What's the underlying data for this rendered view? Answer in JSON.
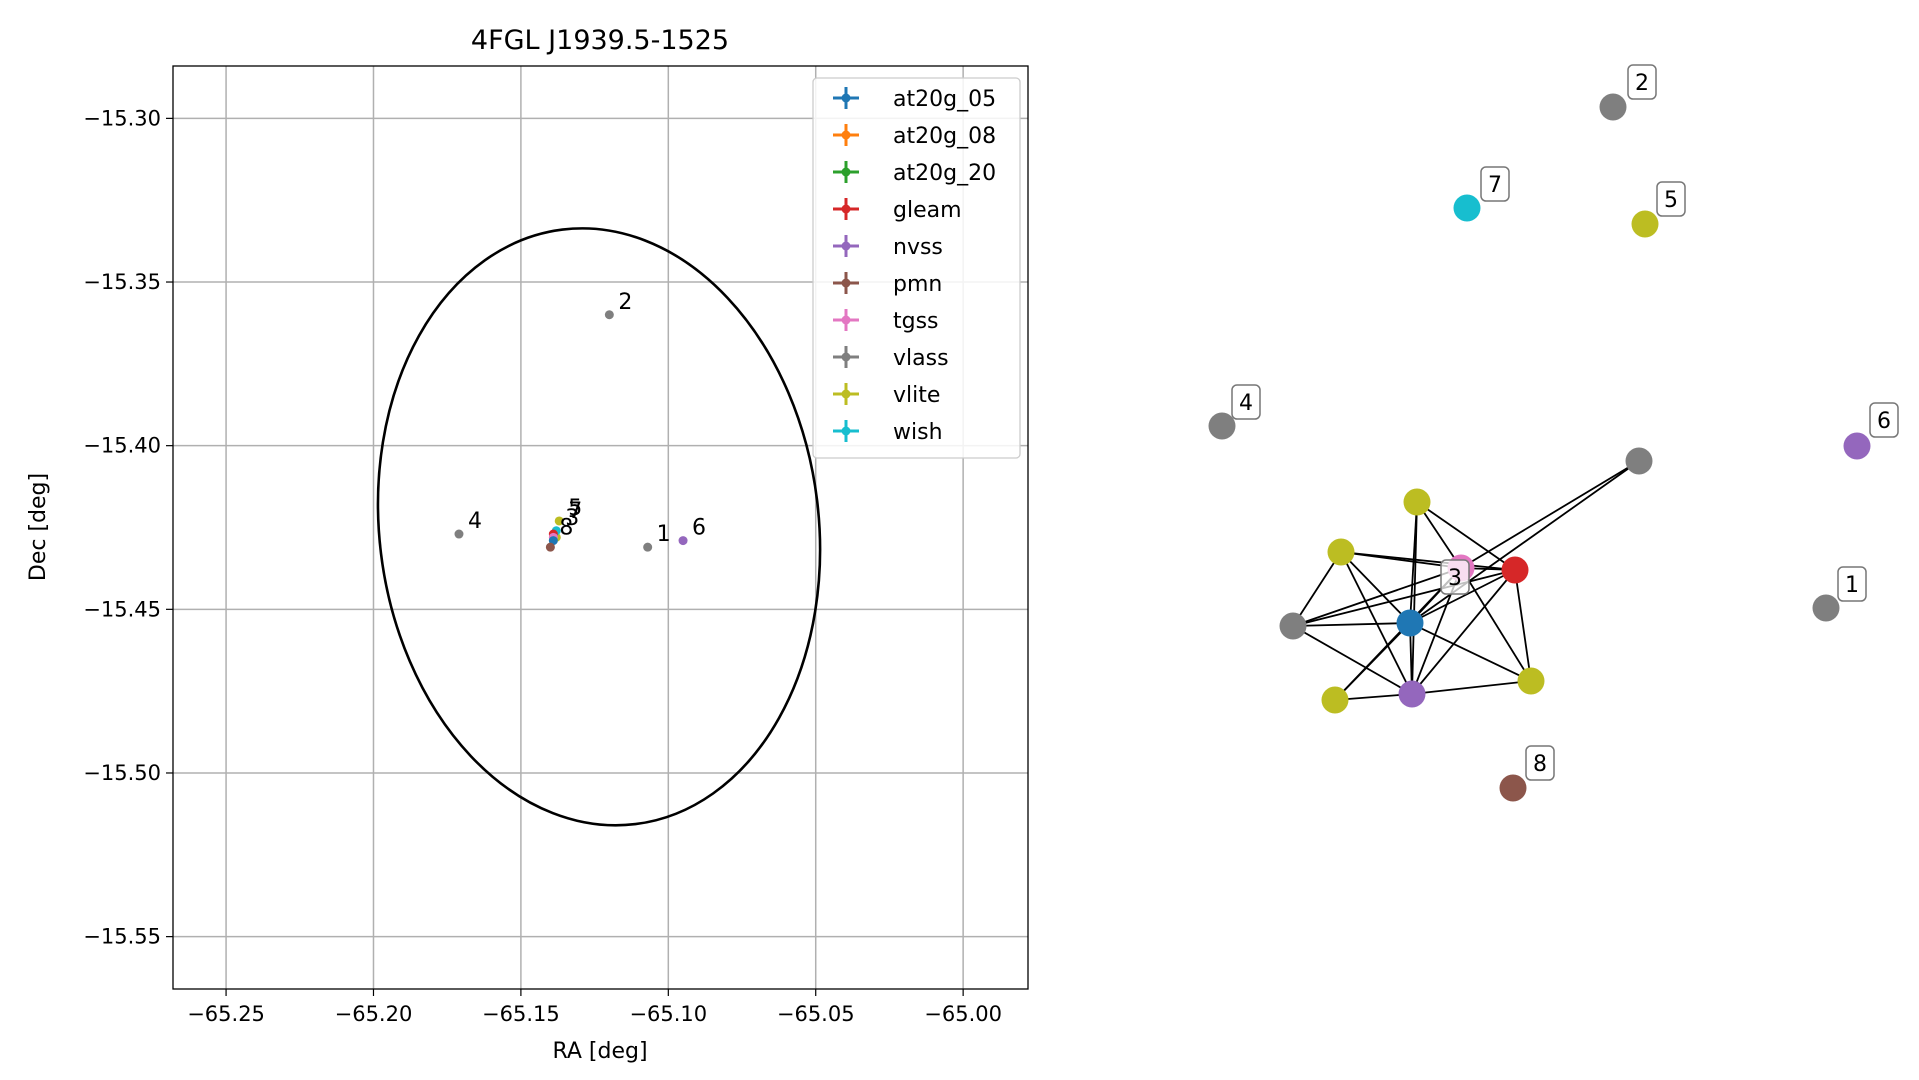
{
  "chart_data": [
    {
      "type": "scatter",
      "title": "4FGL J1939.5-1525",
      "xlabel": "RA [deg]",
      "ylabel": "Dec [deg]",
      "xlim": [
        -65.268,
        -64.978
      ],
      "ylim": [
        -15.566,
        -15.284
      ],
      "xticks": [
        -65.25,
        -65.2,
        -65.15,
        -65.1,
        -65.05,
        -65.0
      ],
      "xtick_labels": [
        "−65.25",
        "−65.20",
        "−65.15",
        "−65.10",
        "−65.05",
        "−65.00"
      ],
      "yticks": [
        -15.3,
        -15.35,
        -15.4,
        -15.45,
        -15.5,
        -15.55
      ],
      "ytick_labels": [
        "−15.30",
        "−15.35",
        "−15.40",
        "−15.45",
        "−15.50",
        "−15.55"
      ],
      "grid": true,
      "legend_position": "top-right",
      "colors": {
        "at20g_05": "#1f77b4",
        "at20g_08": "#ff7f0e",
        "at20g_20": "#2ca02c",
        "gleam": "#d62728",
        "nvss": "#9467bd",
        "pmn": "#8c564b",
        "tgss": "#e377c2",
        "vlass": "#7f7f7f",
        "vlite": "#bcbd22",
        "wish": "#17becf"
      },
      "legend": [
        "at20g_05",
        "at20g_08",
        "at20g_20",
        "gleam",
        "nvss",
        "pmn",
        "tgss",
        "vlass",
        "vlite",
        "wish"
      ],
      "series": [
        {
          "name": "vlass",
          "points": [
            {
              "x": -65.12,
              "y": -15.36
            },
            {
              "x": -65.171,
              "y": -15.427
            },
            {
              "x": -65.107,
              "y": -15.431
            }
          ]
        },
        {
          "name": "nvss",
          "points": [
            {
              "x": -65.095,
              "y": -15.429
            }
          ]
        },
        {
          "name": "vlite",
          "points": [
            {
              "x": -65.137,
              "y": -15.423
            },
            {
              "x": -65.138,
              "y": -15.428
            }
          ]
        },
        {
          "name": "wish",
          "points": [
            {
              "x": -65.138,
              "y": -15.426
            }
          ]
        },
        {
          "name": "gleam",
          "points": [
            {
              "x": -65.139,
              "y": -15.427
            }
          ]
        },
        {
          "name": "tgss",
          "points": [
            {
              "x": -65.139,
              "y": -15.428
            }
          ]
        },
        {
          "name": "at20g_05",
          "points": [
            {
              "x": -65.139,
              "y": -15.429
            }
          ]
        },
        {
          "name": "pmn",
          "points": [
            {
              "x": -65.14,
              "y": -15.431
            }
          ]
        }
      ],
      "point_labels": [
        {
          "text": "2",
          "x": -65.12,
          "y": -15.36
        },
        {
          "text": "4",
          "x": -65.171,
          "y": -15.427
        },
        {
          "text": "1",
          "x": -65.107,
          "y": -15.431
        },
        {
          "text": "6",
          "x": -65.095,
          "y": -15.429
        },
        {
          "text": "5",
          "x": -65.137,
          "y": -15.423
        },
        {
          "text": "7",
          "x": -65.137,
          "y": -15.424
        },
        {
          "text": "3",
          "x": -65.138,
          "y": -15.426
        },
        {
          "text": "8",
          "x": -65.14,
          "y": -15.429
        }
      ],
      "ellipse": {
        "center": [
          -65.1235,
          -15.4248
        ],
        "semi_axes": [
          0.0745,
          0.0915
        ],
        "rotation_deg": -7
      }
    },
    {
      "type": "network",
      "node_colors": {
        "gray": "#7f7f7f",
        "olive": "#bcbd22",
        "cyan": "#17becf",
        "purple": "#9467bd",
        "blue": "#1f77b4",
        "red": "#d62728",
        "pink": "#e377c2",
        "brown": "#8c564b"
      },
      "nodes": [
        {
          "id": "n2",
          "label": "2",
          "color": "gray"
        },
        {
          "id": "n7",
          "label": "7",
          "color": "cyan"
        },
        {
          "id": "n5",
          "label": "5",
          "color": "olive"
        },
        {
          "id": "n4",
          "label": "4",
          "color": "gray"
        },
        {
          "id": "n6",
          "label": "6",
          "color": "purple"
        },
        {
          "id": "n1",
          "label": "1",
          "color": "gray"
        },
        {
          "id": "n8",
          "label": "8",
          "color": "brown"
        },
        {
          "id": "c_vlass_r",
          "label": "",
          "color": "gray"
        },
        {
          "id": "c_vlite_t",
          "label": "",
          "color": "olive"
        },
        {
          "id": "c_vlite_l",
          "label": "",
          "color": "olive"
        },
        {
          "id": "c_tgss",
          "label": "3",
          "color": "pink"
        },
        {
          "id": "c_gleam",
          "label": "",
          "color": "red"
        },
        {
          "id": "c_vlass_l",
          "label": "",
          "color": "gray"
        },
        {
          "id": "c_at20g",
          "label": "",
          "color": "blue"
        },
        {
          "id": "c_vlite_r",
          "label": "",
          "color": "olive"
        },
        {
          "id": "c_vlite_b",
          "label": "",
          "color": "olive"
        },
        {
          "id": "c_nvss",
          "label": "",
          "color": "purple"
        }
      ],
      "edges": [
        [
          "c_vlite_t",
          "c_tgss"
        ],
        [
          "c_vlite_t",
          "c_at20g"
        ],
        [
          "c_vlite_t",
          "c_nvss"
        ],
        [
          "c_vlite_t",
          "c_gleam"
        ],
        [
          "c_vlite_l",
          "c_tgss"
        ],
        [
          "c_vlite_l",
          "c_gleam"
        ],
        [
          "c_vlite_l",
          "c_at20g"
        ],
        [
          "c_vlite_l",
          "c_vlass_l"
        ],
        [
          "c_vlite_l",
          "c_nvss"
        ],
        [
          "c_vlass_l",
          "c_tgss"
        ],
        [
          "c_vlass_l",
          "c_at20g"
        ],
        [
          "c_vlass_l",
          "c_gleam"
        ],
        [
          "c_vlass_l",
          "c_nvss"
        ],
        [
          "c_tgss",
          "c_gleam"
        ],
        [
          "c_tgss",
          "c_at20g"
        ],
        [
          "c_tgss",
          "c_nvss"
        ],
        [
          "c_tgss",
          "c_vlite_r"
        ],
        [
          "c_tgss",
          "c_vlite_b"
        ],
        [
          "c_gleam",
          "c_at20g"
        ],
        [
          "c_gleam",
          "c_nvss"
        ],
        [
          "c_gleam",
          "c_vlite_r"
        ],
        [
          "c_at20g",
          "c_nvss"
        ],
        [
          "c_at20g",
          "c_vlite_r"
        ],
        [
          "c_at20g",
          "c_vlite_b"
        ],
        [
          "c_nvss",
          "c_vlite_r"
        ],
        [
          "c_nvss",
          "c_vlite_b"
        ],
        [
          "c_vlass_r",
          "c_tgss"
        ],
        [
          "c_vlass_r",
          "c_at20g"
        ]
      ]
    }
  ]
}
